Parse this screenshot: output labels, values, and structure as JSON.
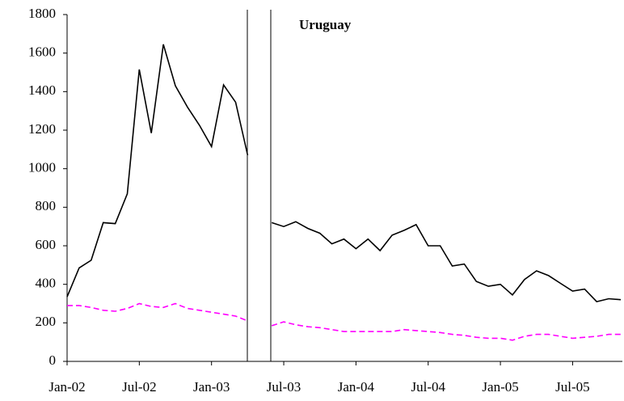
{
  "chart_data": {
    "type": "line",
    "annotation": "Uruguay",
    "categories": [
      "Jan-02",
      null,
      null,
      null,
      null,
      null,
      "Jul-02",
      null,
      null,
      null,
      null,
      null,
      "Jan-03",
      null,
      null,
      null,
      null,
      null,
      "Jul-03",
      null,
      null,
      null,
      null,
      null,
      "Jan-04",
      null,
      null,
      null,
      null,
      null,
      "Jul-04",
      null,
      null,
      null,
      null,
      null,
      "Jan-05",
      null,
      null,
      null,
      null,
      null,
      "Jul-05",
      null,
      null,
      null,
      null
    ],
    "series": [
      {
        "color": "#000000",
        "style": "solid",
        "values": [
          335,
          485,
          525,
          720,
          715,
          870,
          1515,
          1185,
          1645,
          1430,
          1320,
          1225,
          1115,
          1435,
          1345,
          1070,
          null,
          720,
          700,
          725,
          690,
          665,
          610,
          635,
          585,
          635,
          575,
          655,
          680,
          710,
          600,
          600,
          495,
          505,
          415,
          390,
          400,
          345,
          425,
          470,
          445,
          405,
          365,
          375,
          310,
          325,
          320
        ]
      },
      {
        "color": "#ff00ff",
        "style": "dashed",
        "values": [
          290,
          290,
          280,
          265,
          260,
          275,
          300,
          285,
          280,
          300,
          275,
          265,
          255,
          245,
          235,
          210,
          null,
          185,
          205,
          190,
          180,
          175,
          165,
          155,
          155,
          155,
          155,
          155,
          165,
          160,
          155,
          150,
          140,
          135,
          125,
          120,
          120,
          110,
          130,
          140,
          140,
          130,
          120,
          125,
          130,
          140,
          140
        ]
      }
    ],
    "ylim": [
      0,
      1800
    ],
    "yticks": [
      0,
      200,
      400,
      600,
      800,
      1000,
      1200,
      1400,
      1600,
      1800
    ],
    "grid": false
  }
}
